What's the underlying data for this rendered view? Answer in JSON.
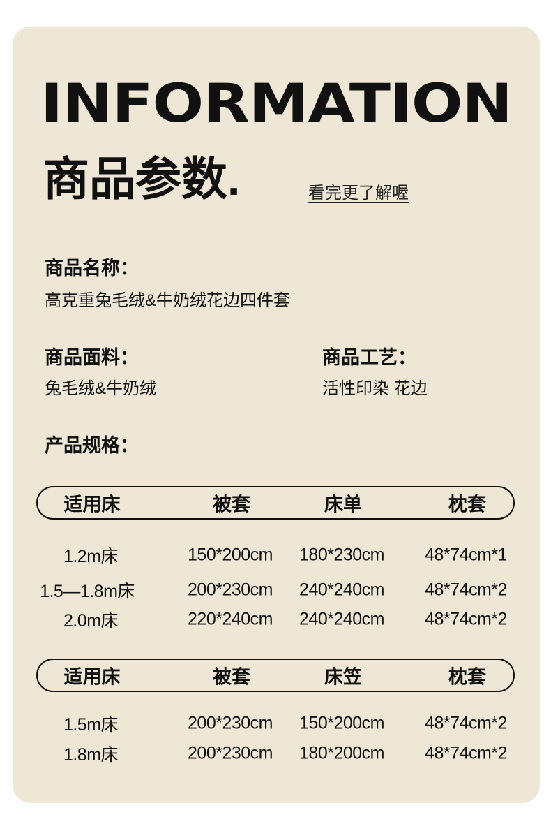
{
  "header": {
    "title_en": "INFORMATION",
    "title_cn": "商品参数.",
    "more_link": "看完更了解喔"
  },
  "fields": {
    "name": {
      "label": "商品名称：",
      "value": "高克重兔毛绒&牛奶绒花边四件套"
    },
    "material": {
      "label": "商品面料：",
      "value": "兔毛绒&牛奶绒"
    },
    "craft": {
      "label": "商品工艺：",
      "value": "活性印染 花边"
    },
    "spec": {
      "label": "产品规格："
    }
  },
  "tables": [
    {
      "headers": [
        "适用床",
        "被套",
        "床单",
        "枕套"
      ],
      "rows": [
        [
          "1.2m床",
          "150*200cm",
          "180*230cm",
          "48*74cm*1"
        ],
        [
          "1.5—1.8m床",
          "200*230cm",
          "240*240cm",
          "48*74cm*2"
        ],
        [
          "2.0m床",
          "220*240cm",
          "240*240cm",
          "48*74cm*2"
        ]
      ]
    },
    {
      "headers": [
        "适用床",
        "被套",
        "床笠",
        "枕套"
      ],
      "rows": [
        [
          "1.5m床",
          "200*230cm",
          "150*200cm",
          "48*74cm*2"
        ],
        [
          "1.8m床",
          "200*230cm",
          "180*200cm",
          "48*74cm*2"
        ]
      ]
    }
  ],
  "colors": {
    "card_bg": "#efe7d6",
    "text": "#111111"
  }
}
